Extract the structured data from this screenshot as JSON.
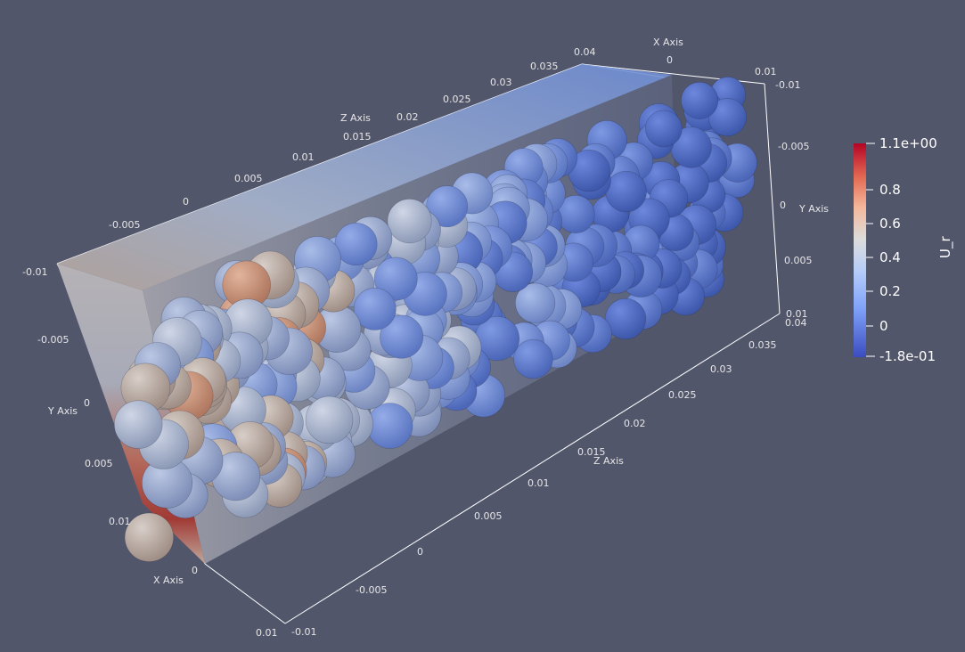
{
  "viewer": {
    "background": "#52566b"
  },
  "colorbar": {
    "title": "U_r",
    "labels": [
      "1.1e+00",
      "0.8",
      "0.6",
      "0.4",
      "0.2",
      "0",
      "-1.8e-01"
    ],
    "colors": [
      "#b40426",
      "#f18c6c",
      "#f2cbb7",
      "#d9dce1",
      "#aac7fd",
      "#6f92f3",
      "#3b4cc0"
    ]
  },
  "axes": {
    "z_axis_title_top": "Z Axis",
    "z_axis_title_bottom": "Z Axis",
    "x_axis_title_top": "X Axis",
    "x_axis_title_bottom": "X Axis",
    "y_axis_title_left": "Y Axis",
    "y_axis_title_right": "Y Axis",
    "z_ticks_top": [
      "-0.005",
      "0",
      "0.005",
      "0.01",
      "0.015",
      "0.02",
      "0.025",
      "0.03",
      "0.035",
      "0.04"
    ],
    "z_ticks_bottom": [
      "-0.01",
      "-0.005",
      "0",
      "0.005",
      "0.01",
      "0.015",
      "0.02",
      "0.025",
      "0.03",
      "0.035",
      "0.04"
    ],
    "x_ticks_top": [
      "-0.01",
      "0",
      "0.01"
    ],
    "y_ticks_right": [
      "-0.01",
      "-0.005",
      "0",
      "0.005",
      "0.01"
    ],
    "y_ticks_left": [
      "-0.01",
      "-0.005",
      "0",
      "0.005",
      "0.01"
    ],
    "x_ticks_bottom": [
      "0",
      "0.01"
    ]
  }
}
